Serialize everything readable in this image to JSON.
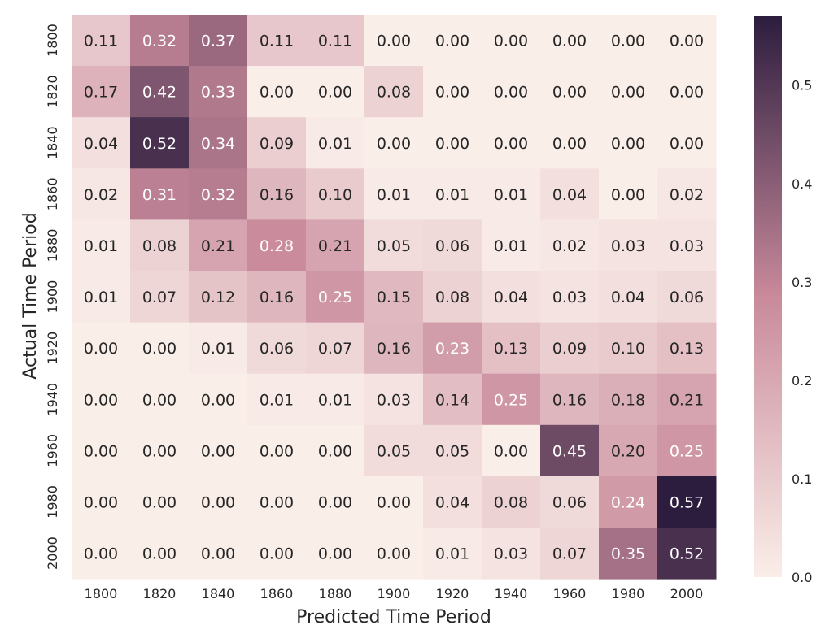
{
  "chart_data": {
    "type": "heatmap",
    "title": "",
    "xlabel": "Predicted Time Period",
    "ylabel": "Actual Time Period",
    "x_categories": [
      "1800",
      "1820",
      "1840",
      "1860",
      "1880",
      "1900",
      "1920",
      "1940",
      "1960",
      "1980",
      "2000"
    ],
    "y_categories": [
      "1800",
      "1820",
      "1840",
      "1860",
      "1880",
      "1900",
      "1920",
      "1940",
      "1960",
      "1980",
      "2000"
    ],
    "values": [
      [
        0.11,
        0.32,
        0.37,
        0.11,
        0.11,
        0.0,
        0.0,
        0.0,
        0.0,
        0.0,
        0.0
      ],
      [
        0.17,
        0.42,
        0.33,
        0.0,
        0.0,
        0.08,
        0.0,
        0.0,
        0.0,
        0.0,
        0.0
      ],
      [
        0.04,
        0.52,
        0.34,
        0.09,
        0.01,
        0.0,
        0.0,
        0.0,
        0.0,
        0.0,
        0.0
      ],
      [
        0.02,
        0.31,
        0.32,
        0.16,
        0.1,
        0.01,
        0.01,
        0.01,
        0.04,
        0.0,
        0.02
      ],
      [
        0.01,
        0.08,
        0.21,
        0.28,
        0.21,
        0.05,
        0.06,
        0.01,
        0.02,
        0.03,
        0.03
      ],
      [
        0.01,
        0.07,
        0.12,
        0.16,
        0.25,
        0.15,
        0.08,
        0.04,
        0.03,
        0.04,
        0.06
      ],
      [
        0.0,
        0.0,
        0.01,
        0.06,
        0.07,
        0.16,
        0.23,
        0.13,
        0.09,
        0.1,
        0.13
      ],
      [
        0.0,
        0.0,
        0.0,
        0.01,
        0.01,
        0.03,
        0.14,
        0.25,
        0.16,
        0.18,
        0.21
      ],
      [
        0.0,
        0.0,
        0.0,
        0.0,
        0.0,
        0.05,
        0.05,
        0.0,
        0.45,
        0.2,
        0.25
      ],
      [
        0.0,
        0.0,
        0.0,
        0.0,
        0.0,
        0.0,
        0.04,
        0.08,
        0.06,
        0.24,
        0.57
      ],
      [
        0.0,
        0.0,
        0.0,
        0.0,
        0.0,
        0.0,
        0.01,
        0.03,
        0.07,
        0.35,
        0.52
      ]
    ],
    "colorbar": {
      "range": [
        0,
        0.57
      ],
      "ticks": [
        "0.0",
        "0.1",
        "0.2",
        "0.3",
        "0.4",
        "0.5"
      ],
      "color_low": "#faeee9",
      "color_mid": "#c98a9b",
      "color_high": "#2c1d3e"
    },
    "grid": false,
    "legend": "colorbar-right"
  }
}
